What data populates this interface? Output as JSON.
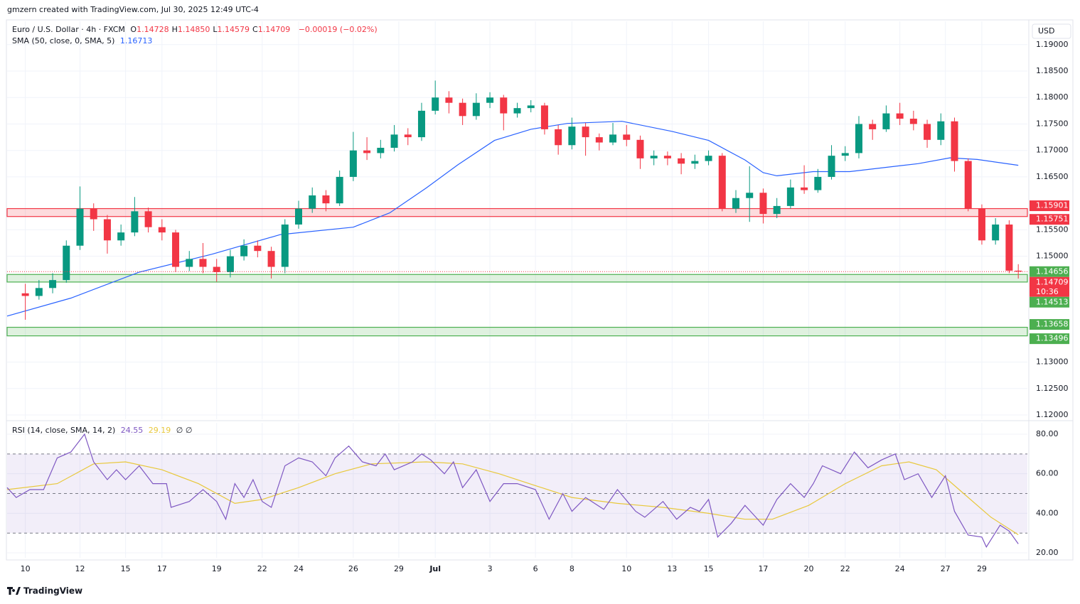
{
  "header": {
    "attribution": "gmzern created with TradingView.com, Jul 30, 2025 12:49 UTC-4"
  },
  "chart_data": {
    "type": "candlestick",
    "symbol": "Euro / U.S. Dollar · 4h · FXCM",
    "ohlc_legend": [
      {
        "key": "O",
        "label": "1.14728"
      },
      {
        "key": "H",
        "label": "1.14850"
      },
      {
        "key": "L",
        "label": "1.14579"
      },
      {
        "key": "C",
        "label": "1.14709"
      }
    ],
    "change": "−0.00019 (−0.02%)",
    "currency": "USD",
    "up_color": "#089981",
    "down_color": "#f23645",
    "xlim": [
      -4,
      220
    ],
    "ylim": [
      1.1192,
      1.1944
    ],
    "xticks": [
      {
        "value": 0,
        "label": "10"
      },
      {
        "value": 12,
        "label": "12"
      },
      {
        "value": 22,
        "label": "15"
      },
      {
        "value": 30,
        "label": "17"
      },
      {
        "value": 42,
        "label": "19"
      },
      {
        "value": 52,
        "label": "22"
      },
      {
        "value": 60,
        "label": "24"
      },
      {
        "value": 72,
        "label": "26"
      },
      {
        "value": 82,
        "label": "29"
      },
      {
        "value": 90,
        "label": "Jul"
      },
      {
        "value": 102,
        "label": "3"
      },
      {
        "value": 112,
        "label": "6"
      },
      {
        "value": 120,
        "label": "8"
      },
      {
        "value": 132,
        "label": "10"
      },
      {
        "value": 142,
        "label": "13"
      },
      {
        "value": 150,
        "label": "15"
      },
      {
        "value": 162,
        "label": "17"
      },
      {
        "value": 172,
        "label": "20"
      },
      {
        "value": 180,
        "label": "22"
      },
      {
        "value": 192,
        "label": "24"
      },
      {
        "value": 202,
        "label": "27"
      },
      {
        "value": 210,
        "label": "29"
      }
    ],
    "yticks": [
      {
        "value": 1.19,
        "label": "1.19000"
      },
      {
        "value": 1.185,
        "label": "1.18500"
      },
      {
        "value": 1.18,
        "label": "1.18000"
      },
      {
        "value": 1.175,
        "label": "1.17500"
      },
      {
        "value": 1.17,
        "label": "1.17000"
      },
      {
        "value": 1.165,
        "label": "1.16500"
      },
      {
        "value": 1.155,
        "label": "1.15500"
      },
      {
        "value": 1.15,
        "label": "1.15000"
      },
      {
        "value": 1.13,
        "label": "1.13000"
      },
      {
        "value": 1.125,
        "label": "1.12500"
      },
      {
        "value": 1.12,
        "label": "1.12000"
      }
    ],
    "grid": true,
    "x": [
      0,
      3,
      6,
      9,
      12,
      15,
      18,
      21,
      24,
      27,
      30,
      33,
      36,
      39,
      42,
      45,
      48,
      51,
      54,
      57,
      60,
      63,
      66,
      69,
      72,
      75,
      78,
      81,
      84,
      87,
      90,
      93,
      96,
      99,
      102,
      105,
      108,
      111,
      114,
      117,
      120,
      123,
      126,
      129,
      132,
      135,
      138,
      141,
      144,
      147,
      150,
      153,
      156,
      159,
      162,
      165,
      168,
      171,
      174,
      177,
      180,
      183,
      186,
      189,
      192,
      195,
      198,
      201,
      204,
      207,
      210,
      213,
      216,
      218
    ],
    "ohlc": [
      [
        1.143,
        1.1448,
        1.138,
        1.1425
      ],
      [
        1.1425,
        1.1455,
        1.1418,
        1.144
      ],
      [
        1.144,
        1.1468,
        1.143,
        1.1455
      ],
      [
        1.1455,
        1.153,
        1.145,
        1.152
      ],
      [
        1.152,
        1.1632,
        1.1512,
        1.159
      ],
      [
        1.159,
        1.16,
        1.1548,
        1.157
      ],
      [
        1.157,
        1.1578,
        1.1505,
        1.153
      ],
      [
        1.153,
        1.156,
        1.152,
        1.1545
      ],
      [
        1.1545,
        1.1612,
        1.1538,
        1.1585
      ],
      [
        1.1585,
        1.1592,
        1.1545,
        1.1555
      ],
      [
        1.1555,
        1.157,
        1.153,
        1.1545
      ],
      [
        1.1545,
        1.155,
        1.147,
        1.148
      ],
      [
        1.148,
        1.151,
        1.1472,
        1.1495
      ],
      [
        1.1495,
        1.1525,
        1.1468,
        1.148
      ],
      [
        1.148,
        1.1495,
        1.1452,
        1.147
      ],
      [
        1.147,
        1.1512,
        1.146,
        1.15
      ],
      [
        1.15,
        1.1532,
        1.1492,
        1.152
      ],
      [
        1.152,
        1.153,
        1.1498,
        1.151
      ],
      [
        1.151,
        1.1518,
        1.1458,
        1.148
      ],
      [
        1.148,
        1.157,
        1.1468,
        1.156
      ],
      [
        1.156,
        1.1605,
        1.1552,
        1.159
      ],
      [
        1.159,
        1.163,
        1.1582,
        1.1615
      ],
      [
        1.1615,
        1.1625,
        1.1585,
        1.16
      ],
      [
        1.16,
        1.1662,
        1.1595,
        1.165
      ],
      [
        1.165,
        1.1735,
        1.1642,
        1.17
      ],
      [
        1.17,
        1.1725,
        1.1682,
        1.1695
      ],
      [
        1.1695,
        1.172,
        1.1685,
        1.1705
      ],
      [
        1.1705,
        1.1748,
        1.1698,
        1.173
      ],
      [
        1.173,
        1.1742,
        1.171,
        1.1725
      ],
      [
        1.1725,
        1.179,
        1.1718,
        1.1775
      ],
      [
        1.1775,
        1.1832,
        1.1768,
        1.18
      ],
      [
        1.18,
        1.1812,
        1.177,
        1.179
      ],
      [
        1.179,
        1.1798,
        1.1748,
        1.1765
      ],
      [
        1.1765,
        1.1808,
        1.1758,
        1.179
      ],
      [
        1.179,
        1.181,
        1.178,
        1.18
      ],
      [
        1.18,
        1.1805,
        1.1738,
        1.177
      ],
      [
        1.177,
        1.179,
        1.1762,
        1.178
      ],
      [
        1.178,
        1.1795,
        1.1772,
        1.1785
      ],
      [
        1.1785,
        1.179,
        1.173,
        1.174
      ],
      [
        1.174,
        1.1748,
        1.1692,
        1.171
      ],
      [
        1.171,
        1.1762,
        1.1702,
        1.1745
      ],
      [
        1.1745,
        1.1752,
        1.169,
        1.1725
      ],
      [
        1.1725,
        1.1732,
        1.17,
        1.1715
      ],
      [
        1.1715,
        1.1752,
        1.171,
        1.173
      ],
      [
        1.173,
        1.1748,
        1.1708,
        1.172
      ],
      [
        1.172,
        1.1728,
        1.1665,
        1.1685
      ],
      [
        1.1685,
        1.17,
        1.1672,
        1.169
      ],
      [
        1.169,
        1.1698,
        1.1672,
        1.1685
      ],
      [
        1.1685,
        1.1695,
        1.1655,
        1.1675
      ],
      [
        1.1675,
        1.1692,
        1.1665,
        1.168
      ],
      [
        1.168,
        1.17,
        1.1672,
        1.169
      ],
      [
        1.169,
        1.1695,
        1.1585,
        1.159
      ],
      [
        1.159,
        1.1625,
        1.1582,
        1.161
      ],
      [
        1.161,
        1.167,
        1.1565,
        1.162
      ],
      [
        1.162,
        1.1628,
        1.1562,
        1.158
      ],
      [
        1.158,
        1.161,
        1.1572,
        1.1595
      ],
      [
        1.1595,
        1.1645,
        1.159,
        1.163
      ],
      [
        1.163,
        1.1672,
        1.1618,
        1.1625
      ],
      [
        1.1625,
        1.1665,
        1.162,
        1.165
      ],
      [
        1.165,
        1.171,
        1.1645,
        1.169
      ],
      [
        1.169,
        1.1708,
        1.168,
        1.1695
      ],
      [
        1.1695,
        1.1765,
        1.1685,
        1.175
      ],
      [
        1.175,
        1.1758,
        1.172,
        1.174
      ],
      [
        1.174,
        1.1785,
        1.1735,
        1.177
      ],
      [
        1.177,
        1.179,
        1.1748,
        1.176
      ],
      [
        1.176,
        1.1775,
        1.1738,
        1.175
      ],
      [
        1.175,
        1.1758,
        1.1705,
        1.172
      ],
      [
        1.172,
        1.177,
        1.171,
        1.1755
      ],
      [
        1.1755,
        1.1762,
        1.166,
        1.168
      ],
      [
        1.168,
        1.1685,
        1.1585,
        1.159
      ],
      [
        1.159,
        1.1598,
        1.1522,
        1.153
      ],
      [
        1.153,
        1.1572,
        1.1522,
        1.156
      ],
      [
        1.156,
        1.1568,
        1.1468,
        1.14728
      ],
      [
        1.14728,
        1.1485,
        1.14579,
        1.14709
      ]
    ],
    "last_price": 1.14709,
    "countdown": "10:36",
    "zones": [
      {
        "to": 1.15901,
        "from": 1.15751,
        "color": "#f23645"
      },
      {
        "to": 1.14656,
        "from": 1.14513,
        "color": "#4caf50"
      },
      {
        "to": 1.13658,
        "from": 1.13496,
        "color": "#4caf50"
      }
    ],
    "sma": {
      "name": "SMA (50, close, 0, SMA, 5)",
      "last": 1.16713,
      "color": "#2962ff",
      "x": [
        -4,
        10,
        25,
        41,
        56,
        72,
        80,
        88,
        95,
        103,
        111,
        119,
        131,
        142,
        150,
        158,
        162,
        165,
        173,
        181,
        189,
        196,
        203,
        209,
        218
      ],
      "values": [
        1.1387,
        1.1421,
        1.147,
        1.1504,
        1.1541,
        1.1555,
        1.1582,
        1.1629,
        1.1673,
        1.1719,
        1.174,
        1.1751,
        1.1755,
        1.1736,
        1.1719,
        1.1682,
        1.1658,
        1.1652,
        1.166,
        1.166,
        1.1668,
        1.1675,
        1.1686,
        1.1683,
        1.1672
      ]
    },
    "rsi": {
      "name": "RSI (14, close, SMA, 14, 2)",
      "color": "#7e57c2",
      "ma_color": "#e8c83c",
      "empty": "∅ ∅",
      "ylim": [
        17.5,
        85.75
      ],
      "yticks": [
        {
          "value": 80,
          "label": "80.00"
        },
        {
          "value": 60,
          "label": "60.00"
        },
        {
          "value": 40,
          "label": "40.00"
        },
        {
          "value": 20,
          "label": "20.00"
        }
      ],
      "band": [
        30,
        70
      ],
      "levels": [
        70,
        50,
        30
      ],
      "x": [
        -4,
        -2,
        1,
        4,
        7,
        10,
        13,
        15,
        18,
        20,
        22,
        25,
        28,
        31,
        32,
        36,
        39,
        42,
        44,
        46,
        48,
        50,
        52,
        54,
        57,
        60,
        63,
        66,
        68,
        71,
        74,
        77,
        79,
        81,
        85,
        87,
        89,
        92,
        94,
        96,
        99,
        102,
        105,
        108,
        112,
        115,
        118,
        120,
        123,
        127,
        130,
        134,
        136,
        140,
        143,
        146,
        148,
        150,
        152,
        155,
        158,
        160,
        162,
        165,
        168,
        171,
        173,
        175,
        179,
        182,
        185,
        188,
        191,
        193,
        196,
        199,
        202,
        204,
        207,
        210,
        211,
        214,
        216,
        218
      ],
      "values": [
        53,
        48,
        52,
        52,
        68,
        71,
        80,
        66,
        57,
        62,
        57,
        64,
        55,
        55,
        43,
        46,
        52,
        46,
        37,
        55,
        48,
        57,
        46,
        43,
        64,
        68,
        66,
        59,
        68,
        74,
        66,
        64,
        70,
        62,
        66,
        70,
        67,
        60,
        66,
        53,
        62,
        46,
        55,
        55,
        52,
        37,
        50,
        41,
        48,
        42,
        52,
        41,
        38,
        46,
        37,
        43,
        41,
        47,
        28,
        35,
        44,
        39,
        34,
        47,
        55,
        48,
        55,
        64,
        60,
        71,
        63,
        67,
        70,
        57,
        60,
        48,
        59,
        41,
        29,
        28,
        23,
        34,
        31,
        24.55
      ],
      "ma_x": [
        -4,
        7,
        15,
        22,
        30,
        38,
        46,
        52,
        60,
        68,
        76,
        88,
        96,
        104,
        112,
        120,
        130,
        140,
        150,
        158,
        164,
        172,
        180,
        188,
        194,
        200,
        206,
        212,
        218
      ],
      "ma_values": [
        52,
        55,
        65,
        66,
        62,
        55,
        45,
        47,
        53,
        60,
        65,
        66,
        65,
        60,
        54,
        48,
        45,
        43,
        40,
        37,
        37,
        44,
        55,
        64,
        66,
        62,
        50,
        38,
        29.19
      ]
    }
  },
  "footer": {
    "brand": "TradingView"
  }
}
